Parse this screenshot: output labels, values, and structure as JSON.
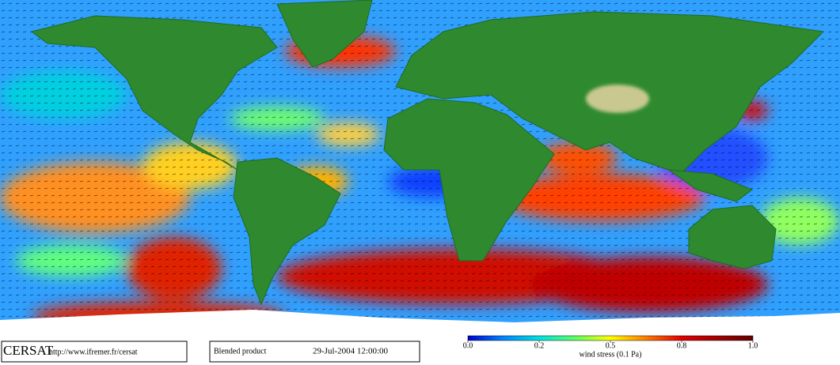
{
  "footer": {
    "logo": "CERSAT",
    "url": "http://www.ifremer.fr/cersat",
    "product": "Blended product",
    "date": "29-Jul-2004 12:00:00"
  },
  "colorbar": {
    "ticks": [
      {
        "value": 0,
        "label": "0.0"
      },
      {
        "value": 0.2,
        "label": "0.2"
      },
      {
        "value": 0.5,
        "label": "0.5"
      },
      {
        "value": 0.8,
        "label": "0.8"
      },
      {
        "value": 1,
        "label": "1.0"
      }
    ],
    "label": "wind stress (0.1 Pa)"
  }
}
